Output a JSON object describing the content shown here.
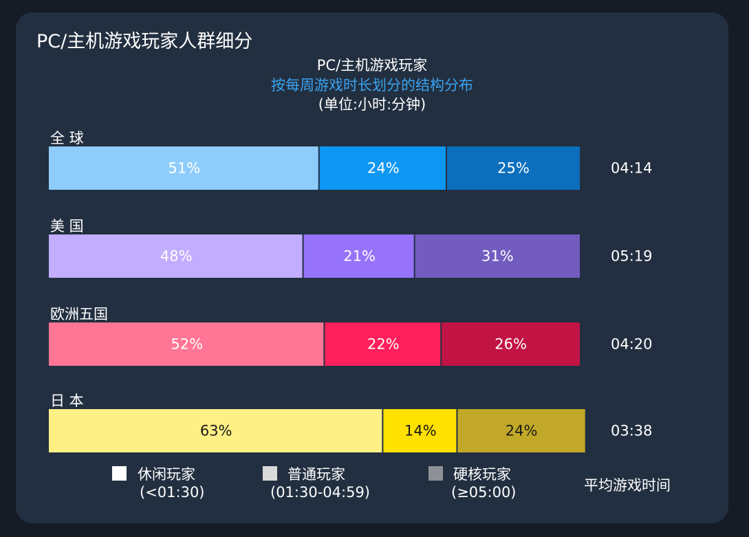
{
  "header": {
    "title": "PC/主机游戏玩家人群细分",
    "subtitle_line1": "PC/主机游戏玩家",
    "subtitle_line2": "按每周游戏时长划分的结构分布",
    "subtitle_line3": "(单位:小时:分钟)"
  },
  "legend": {
    "items": [
      {
        "label": "休闲玩家",
        "range": "(<01:30)",
        "color": "#ffffff"
      },
      {
        "label": "普通玩家",
        "range": "(01:30-04:59)",
        "color": "#d9d9d9"
      },
      {
        "label": "硬核玩家",
        "range": "(≥05:00)",
        "color": "#8c9196"
      }
    ],
    "avg_label": "平均游戏时间"
  },
  "chart_data": {
    "type": "bar",
    "orientation": "horizontal-stacked-100",
    "categories": [
      "全 球",
      "美 国",
      "欧洲五国",
      "日 本"
    ],
    "series": [
      {
        "name": "休闲玩家",
        "values": [
          51,
          48,
          52,
          63
        ]
      },
      {
        "name": "普通玩家",
        "values": [
          24,
          21,
          22,
          14
        ]
      },
      {
        "name": "硬核玩家",
        "values": [
          25,
          31,
          26,
          24
        ]
      }
    ],
    "value_labels": [
      [
        "51%",
        "24%",
        "25%"
      ],
      [
        "48%",
        "21%",
        "31%"
      ],
      [
        "52%",
        "22%",
        "26%"
      ],
      [
        "63%",
        "14%",
        "24%"
      ]
    ],
    "avg_time": [
      "04:14",
      "05:19",
      "04:20",
      "03:38"
    ],
    "colors": [
      [
        "#8ecdfb",
        "#0e96f3",
        "#0b6fbd"
      ],
      [
        "#c2adff",
        "#9673fa",
        "#735cbf"
      ],
      [
        "#ff7596",
        "#ff1f5c",
        "#c21444"
      ],
      [
        "#fff086",
        "#ffe100",
        "#c2a828"
      ]
    ],
    "label_text_color": [
      "#ffffff",
      "#ffffff",
      "#ffffff",
      "#1a1a1a"
    ],
    "xlim": [
      0,
      100
    ],
    "legend_position": "bottom",
    "grid": false
  }
}
